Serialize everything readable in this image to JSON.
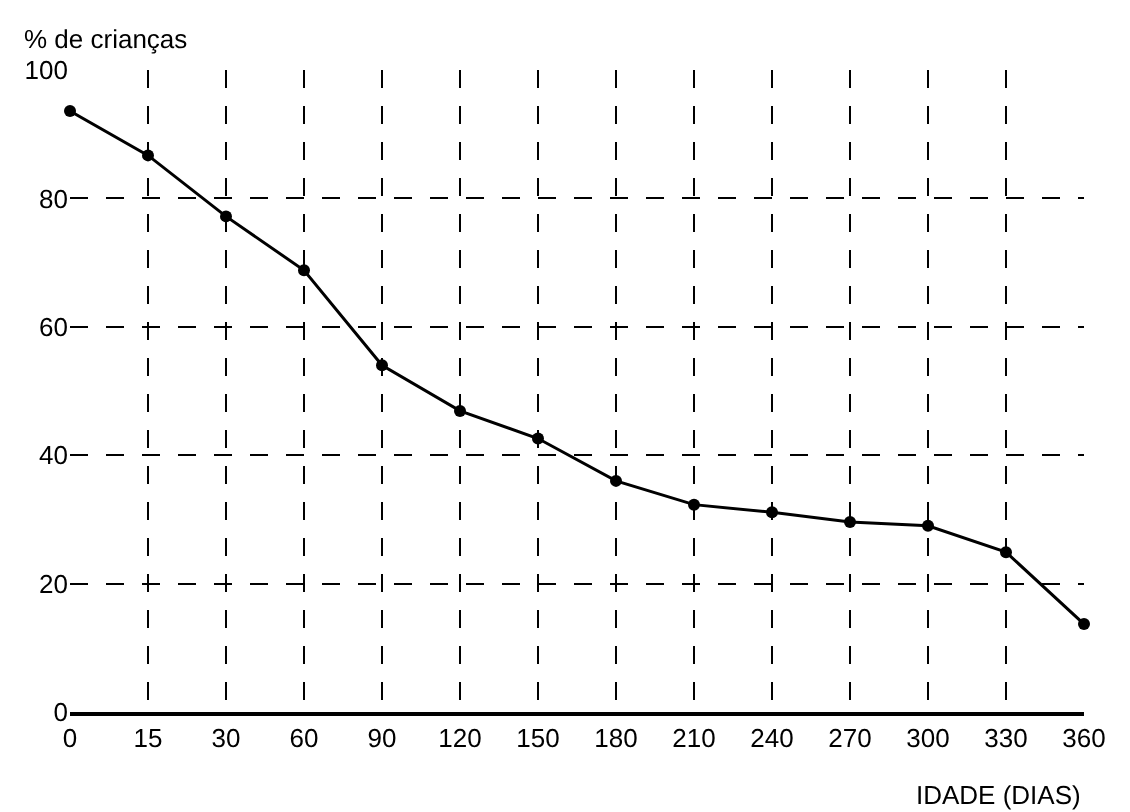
{
  "chart_data": {
    "type": "line",
    "ylabel": "% de crianças",
    "xlabel": "IDADE (DIAS)",
    "categories": [
      "0",
      "15",
      "30",
      "60",
      "90",
      "120",
      "150",
      "180",
      "210",
      "240",
      "270",
      "300",
      "330",
      "360"
    ],
    "series": [
      {
        "color": "#000000",
        "values": [
          93.6,
          86.7,
          77.2,
          68.8,
          54.0,
          46.9,
          42.6,
          36.0,
          32.3,
          31.1,
          29.6,
          29.0,
          24.9,
          13.7
        ]
      }
    ],
    "ylim": [
      0,
      100
    ],
    "yticks": [
      0,
      20,
      40,
      60,
      80,
      100
    ],
    "grid": true,
    "marker": "circle",
    "line_style": "solid"
  }
}
